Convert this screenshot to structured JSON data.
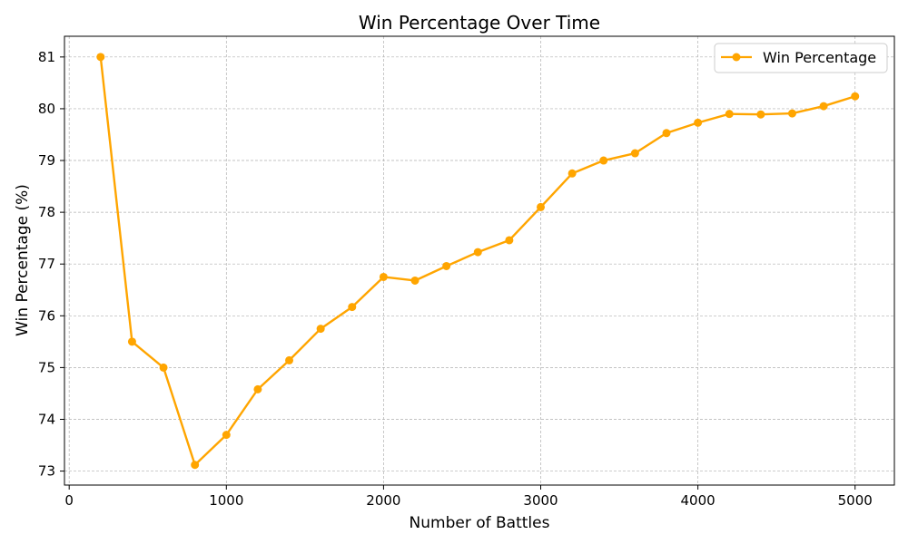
{
  "chart_data": {
    "type": "line",
    "title": "Win Percentage Over Time",
    "xlabel": "Number of Battles",
    "ylabel": "Win Percentage (%)",
    "xlim": [
      -30,
      5250
    ],
    "ylim": [
      72.73,
      81.4
    ],
    "xticks": [
      0,
      1000,
      2000,
      3000,
      4000,
      5000
    ],
    "yticks": [
      73,
      74,
      75,
      76,
      77,
      78,
      79,
      80,
      81
    ],
    "grid": true,
    "legend_position": "top-right",
    "series": [
      {
        "name": "Win Percentage",
        "color": "#FFA500",
        "marker": "circle",
        "x": [
          200,
          400,
          600,
          800,
          1000,
          1200,
          1400,
          1600,
          1800,
          2000,
          2200,
          2400,
          2600,
          2800,
          3000,
          3200,
          3400,
          3600,
          3800,
          4000,
          4200,
          4400,
          4600,
          4800,
          5000
        ],
        "y": [
          81.0,
          75.5,
          75.0,
          73.12,
          73.7,
          74.58,
          75.14,
          75.75,
          76.17,
          76.75,
          76.68,
          76.96,
          77.23,
          77.46,
          78.1,
          78.75,
          79.0,
          79.14,
          79.53,
          79.73,
          79.9,
          79.89,
          79.91,
          80.05,
          80.24
        ]
      }
    ]
  }
}
